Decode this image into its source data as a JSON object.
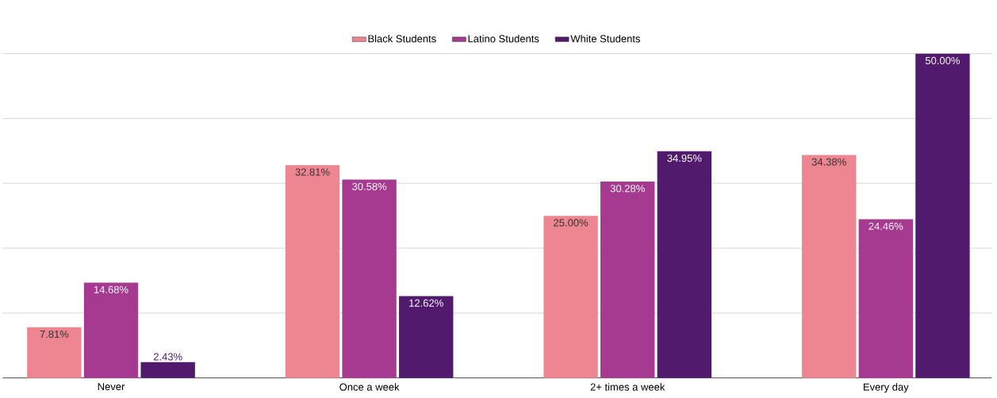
{
  "chart_data": {
    "type": "bar",
    "categories": [
      "Never",
      "Once a week",
      "2+ times a week",
      "Every day"
    ],
    "series": [
      {
        "name": "Black Students",
        "color": "#ee8691",
        "values": [
          7.81,
          32.81,
          25.0,
          34.38
        ],
        "value_labels": [
          "7.81%",
          "32.81%",
          "25.00%",
          "34.38%"
        ]
      },
      {
        "name": "Latino Students",
        "color": "#a63a91",
        "values": [
          14.68,
          30.58,
          30.28,
          24.46
        ],
        "value_labels": [
          "14.68%",
          "30.58%",
          "30.28%",
          "24.46%"
        ]
      },
      {
        "name": "White Students",
        "color": "#511a6d",
        "values": [
          2.43,
          12.62,
          34.95,
          50.0
        ],
        "value_labels": [
          "2.43%",
          "12.62%",
          "34.95%",
          "50.00%"
        ]
      }
    ],
    "ylim": [
      0,
      50
    ],
    "grid": "y",
    "legend": "top",
    "tick_labels": "x"
  }
}
